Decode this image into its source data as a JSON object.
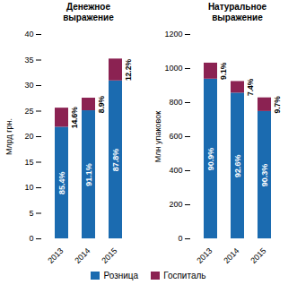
{
  "chart_data": [
    {
      "type": "bar",
      "stacked": true,
      "title": "Денежное\nвыражение",
      "y_label": "Млрд грн.",
      "categories": [
        "2013",
        "2014",
        "2015"
      ],
      "series": [
        {
          "name": "Розница",
          "color": "#1B6BB0",
          "values": [
            21.85,
            25.08,
            30.92
          ],
          "share_labels": [
            "85.4%",
            "91.1%",
            "87.8%"
          ]
        },
        {
          "name": "Госпиталь",
          "color": "#8B2252",
          "values": [
            3.74,
            2.46,
            4.28
          ],
          "share_labels": [
            "14.6%",
            "8.9%",
            "12.2%"
          ]
        }
      ],
      "ylim": [
        0,
        40
      ],
      "yticks": [
        0,
        5,
        10,
        15,
        20,
        25,
        30,
        35,
        40
      ],
      "grid": false,
      "legend": "bottom"
    },
    {
      "type": "bar",
      "stacked": true,
      "title": "Натуральное\nвыражение",
      "y_label": "Млн упаковок",
      "categories": [
        "2013",
        "2014",
        "2015"
      ],
      "series": [
        {
          "name": "Розница",
          "color": "#1B6BB0",
          "values": [
            938,
            856,
            748
          ],
          "share_labels": [
            "90.9%",
            "92.6%",
            "90.3%"
          ]
        },
        {
          "name": "Госпиталь",
          "color": "#8B2252",
          "values": [
            94,
            68,
            80
          ],
          "share_labels": [
            "9.1%",
            "7.4%",
            "9.7%"
          ]
        }
      ],
      "ylim": [
        0,
        1200
      ],
      "yticks": [
        0,
        200,
        400,
        600,
        800,
        1000,
        1200
      ],
      "grid": false,
      "legend": "bottom"
    }
  ]
}
